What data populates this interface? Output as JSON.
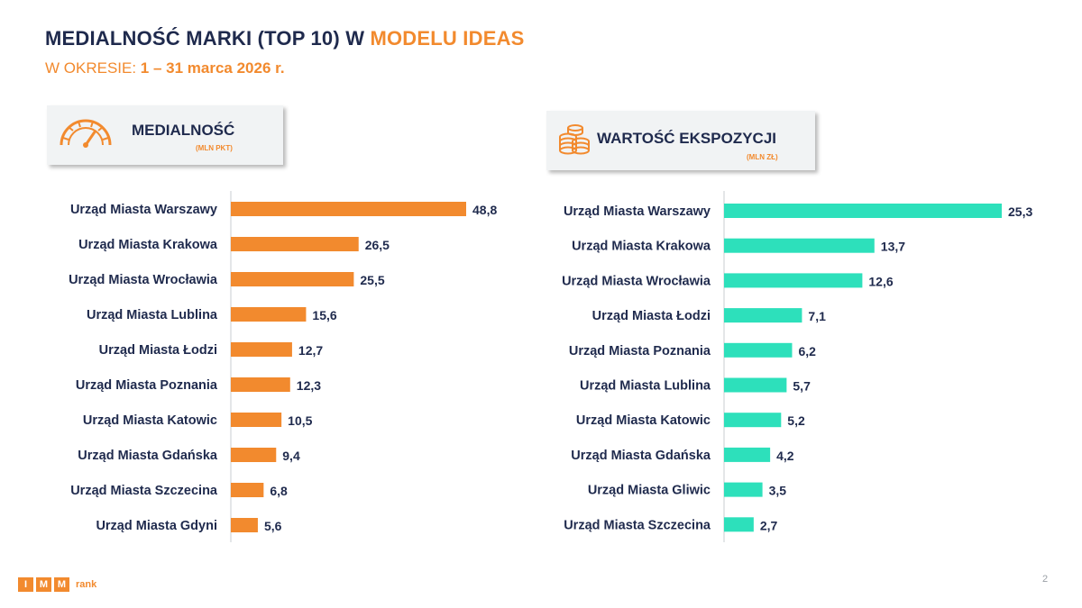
{
  "header": {
    "title_main": "MEDIALNOŚĆ MARKI (TOP 10) W ",
    "title_accent": "MODELU IDEAS",
    "subtitle_prefix": "W OKRESIE: ",
    "subtitle_period": "1 – 31 marca 2026 r."
  },
  "cards": {
    "left": {
      "title": "MEDIALNOŚĆ",
      "unit": "(MLN PKT)",
      "icon": "gauge-icon"
    },
    "right": {
      "title": "WARTOŚĆ EKSPOZYCJI",
      "unit": "(MLN ZŁ)",
      "icon": "coins-icon"
    }
  },
  "colors": {
    "orange": "#f28a2e",
    "teal": "#2de0bb",
    "navy": "#1f2a4d"
  },
  "chart_data": [
    {
      "type": "bar",
      "orientation": "horizontal",
      "title": "MEDIALNOŚĆ",
      "unit": "(MLN PKT)",
      "color": "#f28a2e",
      "xlim": [
        0,
        48.8
      ],
      "grid": false,
      "categories": [
        "Urząd Miasta Warszawy",
        "Urząd Miasta Krakowa",
        "Urząd Miasta Wrocławia",
        "Urząd Miasta Lublina",
        "Urząd Miasta Łodzi",
        "Urząd Miasta Poznania",
        "Urząd Miasta Katowic",
        "Urząd Miasta Gdańska",
        "Urząd Miasta Szczecina",
        "Urząd Miasta Gdyni"
      ],
      "values": [
        48.8,
        26.5,
        25.5,
        15.6,
        12.7,
        12.3,
        10.5,
        9.4,
        6.8,
        5.6
      ],
      "value_labels": [
        "48,8",
        "26,5",
        "25,5",
        "15,6",
        "12,7",
        "12,3",
        "10,5",
        "9,4",
        "6,8",
        "5,6"
      ]
    },
    {
      "type": "bar",
      "orientation": "horizontal",
      "title": "WARTOŚĆ EKSPOZYCJI",
      "unit": "(MLN ZŁ)",
      "color": "#2de0bb",
      "xlim": [
        0,
        25.3
      ],
      "grid": false,
      "categories": [
        "Urząd Miasta Warszawy",
        "Urząd Miasta Krakowa",
        "Urząd Miasta Wrocławia",
        "Urząd Miasta Łodzi",
        "Urząd Miasta Poznania",
        "Urząd Miasta Lublina",
        "Urząd Miasta Katowic",
        "Urząd Miasta Gdańska",
        "Urząd Miasta Gliwic",
        "Urząd Miasta Szczecina"
      ],
      "values": [
        25.3,
        13.7,
        12.6,
        7.1,
        6.2,
        5.7,
        5.2,
        4.2,
        3.5,
        2.7
      ],
      "value_labels": [
        "25,3",
        "13,7",
        "12,6",
        "7,1",
        "6,2",
        "5,7",
        "5,2",
        "4,2",
        "3,5",
        "2,7"
      ]
    }
  ],
  "footer": {
    "logo_letters": [
      "I",
      "M",
      "M"
    ],
    "logo_word": "rank",
    "logo_name": "imm-rank-logo",
    "page_number": "2"
  }
}
